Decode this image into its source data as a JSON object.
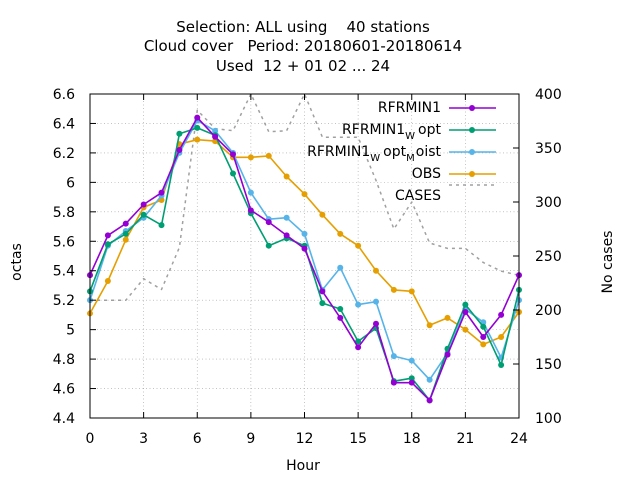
{
  "chart_data": {
    "type": "line",
    "title_lines": [
      "Selection: ALL using    40 stations",
      "Cloud cover   Period: 20180601-20180614",
      "Used  12 + 01 02 ... 24"
    ],
    "xlabel": "Hour",
    "ylabel": "octas",
    "y2label": "No cases",
    "xlim": [
      0,
      24
    ],
    "ylim": [
      4.4,
      6.6
    ],
    "y2lim": [
      100,
      400
    ],
    "xticks": [
      0,
      3,
      6,
      9,
      12,
      15,
      18,
      21,
      24
    ],
    "yticks": [
      4.4,
      4.6,
      4.8,
      5.0,
      5.2,
      5.4,
      5.6,
      5.8,
      6.0,
      6.2,
      6.4,
      6.6
    ],
    "yticklabels": [
      "4.4",
      "4.6",
      "4.8",
      "5",
      "5.2",
      "5.4",
      "5.6",
      "5.8",
      "6",
      "6.2",
      "6.4",
      "6.6"
    ],
    "y2ticks": [
      100,
      150,
      200,
      250,
      300,
      350,
      400
    ],
    "grid": true,
    "legend_position": "top-right",
    "series": [
      {
        "name": "RFRMIN1",
        "color": "#9400d3",
        "x": [
          0,
          1,
          2,
          3,
          4,
          5,
          6,
          7,
          8,
          9,
          10,
          11,
          12,
          13,
          14,
          15,
          16,
          17,
          18,
          19,
          20,
          21,
          22,
          23,
          24
        ],
        "values": [
          5.37,
          5.64,
          5.72,
          5.85,
          5.93,
          6.22,
          6.44,
          6.31,
          6.19,
          5.81,
          5.73,
          5.64,
          5.55,
          5.26,
          5.08,
          4.88,
          5.04,
          4.64,
          4.64,
          4.52,
          4.83,
          5.12,
          4.95,
          5.1,
          5.37
        ]
      },
      {
        "name": "RFRMIN1",
        "name_sub": "W",
        "name_suffix": "opt",
        "color": "#009e73",
        "x": [
          0,
          1,
          2,
          3,
          4,
          5,
          6,
          7,
          8,
          9,
          10,
          11,
          12,
          13,
          14,
          15,
          16,
          17,
          18,
          19,
          20,
          21,
          22,
          23,
          24
        ],
        "values": [
          5.26,
          5.58,
          5.65,
          5.78,
          5.71,
          6.33,
          6.37,
          6.32,
          6.06,
          5.79,
          5.57,
          5.62,
          5.57,
          5.18,
          5.14,
          4.92,
          5.01,
          4.65,
          4.67,
          4.52,
          4.87,
          5.17,
          5.02,
          4.76,
          5.27
        ]
      },
      {
        "name": "RFRMIN1",
        "name_sub": "W",
        "name_suffix": "opt",
        "name_sub2": "M",
        "name_suffix2": "oist",
        "color": "#56b4e9",
        "x": [
          0,
          1,
          2,
          3,
          4,
          5,
          6,
          7,
          8,
          9,
          10,
          11,
          12,
          13,
          14,
          15,
          16,
          17,
          18,
          19,
          20,
          21,
          22,
          23,
          24
        ],
        "values": [
          5.2,
          5.57,
          5.67,
          5.76,
          5.91,
          6.2,
          6.42,
          6.35,
          6.2,
          5.93,
          5.75,
          5.76,
          5.65,
          5.27,
          5.42,
          5.17,
          5.19,
          4.82,
          4.79,
          4.66,
          4.84,
          5.14,
          5.05,
          4.81,
          5.2
        ]
      },
      {
        "name": "OBS",
        "color": "#e69f00",
        "x": [
          0,
          1,
          2,
          3,
          4,
          5,
          6,
          7,
          8,
          9,
          10,
          11,
          12,
          13,
          14,
          15,
          16,
          17,
          18,
          19,
          20,
          21,
          22,
          23,
          24
        ],
        "values": [
          5.11,
          5.33,
          5.61,
          5.83,
          5.88,
          6.26,
          6.29,
          6.28,
          6.17,
          6.17,
          6.18,
          6.04,
          5.92,
          5.78,
          5.65,
          5.57,
          5.4,
          5.27,
          5.26,
          5.03,
          5.08,
          5.0,
          4.9,
          4.95,
          5.12
        ]
      },
      {
        "name": "CASES",
        "color": "#a0a0a0",
        "axis": "y2",
        "dashed": true,
        "x": [
          0,
          1,
          2,
          3,
          4,
          5,
          6,
          7,
          8,
          9,
          10,
          11,
          12,
          13,
          14,
          15,
          16,
          17,
          18,
          19,
          20,
          21,
          22,
          23,
          24
        ],
        "values": [
          209,
          209,
          209,
          229,
          219,
          258,
          385,
          368,
          366,
          400,
          365,
          366,
          400,
          360,
          360,
          360,
          320,
          275,
          300,
          262,
          257,
          257,
          244,
          236,
          232
        ]
      }
    ]
  }
}
